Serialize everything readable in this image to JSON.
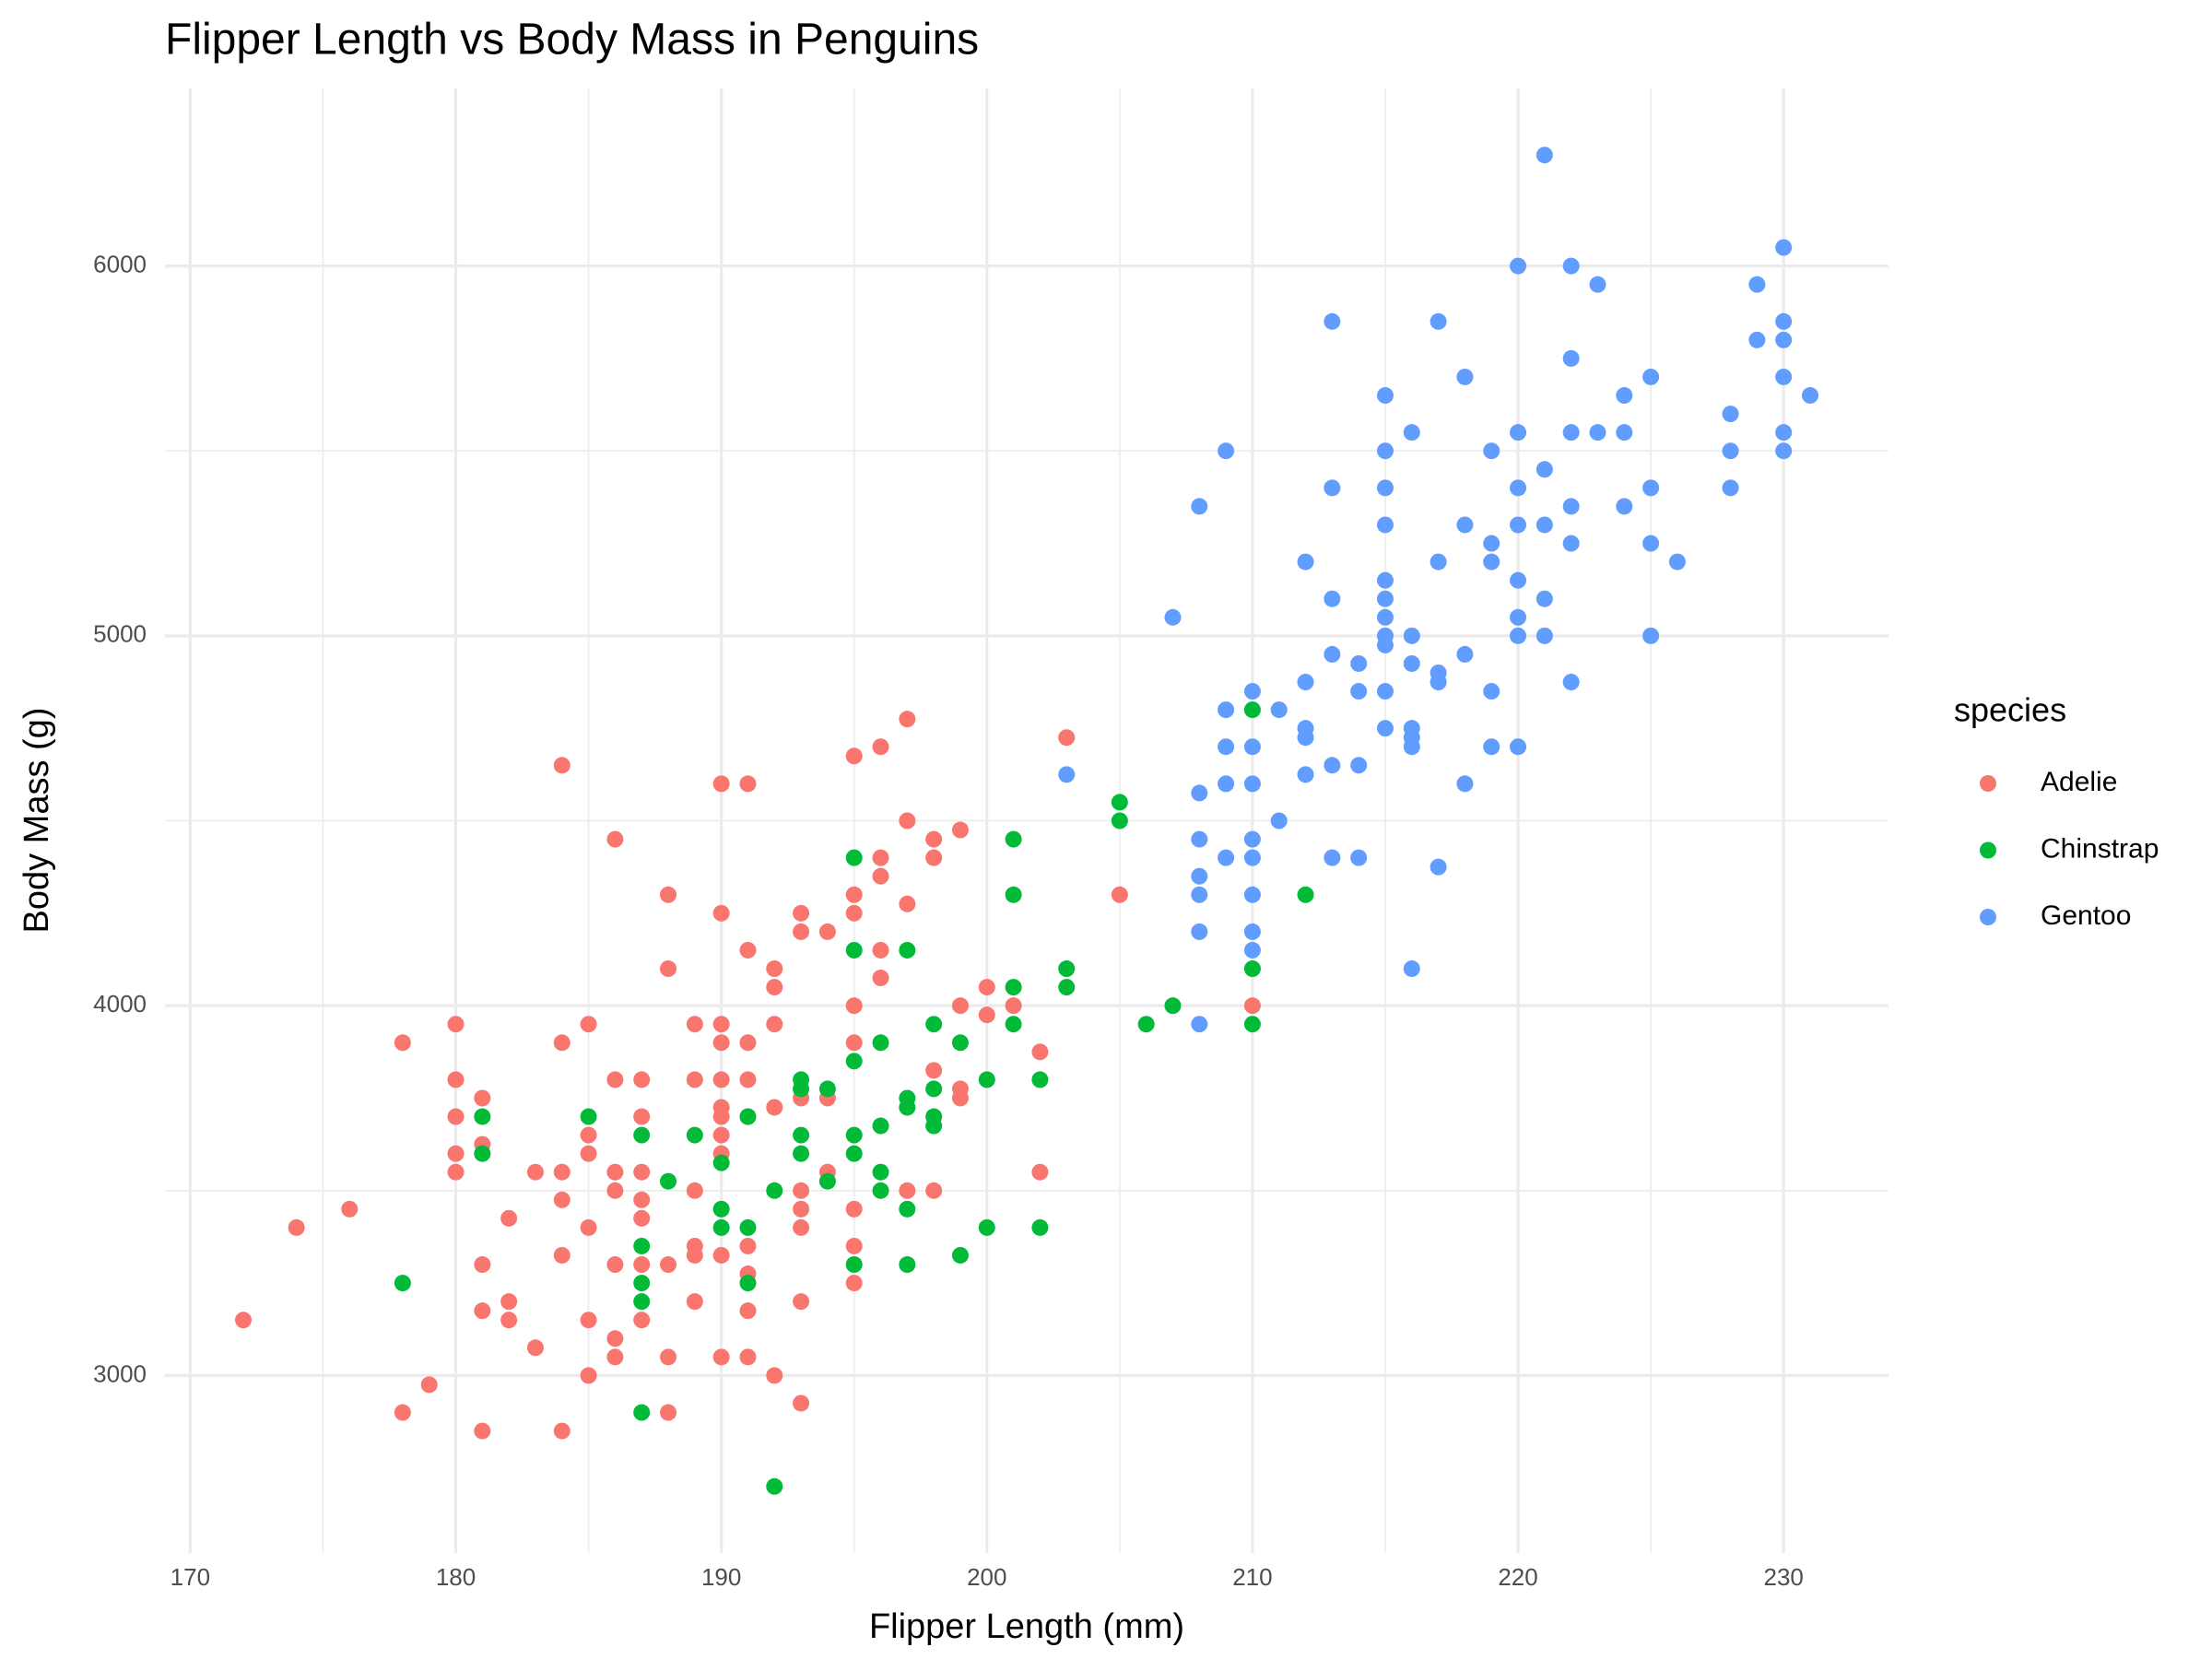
{
  "chart_data": {
    "type": "scatter",
    "title": "Flipper Length vs Body Mass in Penguins",
    "x_label": "Flipper Length (mm)",
    "y_label": "Body Mass (g)",
    "legend_title": "species",
    "legend_position": "right",
    "grid": true,
    "minor_grid": true,
    "xlim": [
      169.05,
      233.95
    ],
    "ylim": [
      2520,
      6480
    ],
    "xticks": [
      170,
      180,
      190,
      200,
      210,
      220,
      230
    ],
    "yticks": [
      3000,
      4000,
      5000,
      6000
    ],
    "series": [
      {
        "name": "Adelie",
        "color": "#F8766D",
        "x": [
          172,
          174,
          176,
          178,
          178,
          179,
          180,
          180,
          180,
          180,
          180,
          181,
          181,
          181,
          181,
          181,
          182,
          182,
          182,
          183,
          183,
          184,
          184,
          184,
          184,
          184,
          184,
          185,
          185,
          185,
          185,
          185,
          185,
          186,
          186,
          186,
          186,
          186,
          186,
          186,
          187,
          187,
          187,
          187,
          187,
          187,
          187,
          188,
          188,
          188,
          188,
          188,
          189,
          189,
          189,
          189,
          189,
          189,
          190,
          190,
          190,
          190,
          190,
          190,
          190,
          190,
          190,
          190,
          190,
          191,
          191,
          191,
          191,
          191,
          191,
          191,
          191,
          191,
          192,
          192,
          192,
          192,
          192,
          193,
          193,
          193,
          193,
          193,
          193,
          193,
          193,
          194,
          194,
          194,
          195,
          195,
          195,
          195,
          195,
          195,
          195,
          195,
          196,
          196,
          196,
          196,
          196,
          197,
          197,
          197,
          197,
          198,
          198,
          198,
          198,
          199,
          199,
          199,
          199,
          200,
          200,
          201,
          202,
          202,
          203,
          205,
          210
        ],
        "y": [
          3150,
          3400,
          3450,
          3900,
          2900,
          2975,
          3950,
          3800,
          3700,
          3600,
          3550,
          3750,
          3625,
          3300,
          3175,
          2850,
          3425,
          3200,
          3150,
          3550,
          3075,
          4650,
          3900,
          3550,
          3475,
          3325,
          2850,
          3950,
          3650,
          3600,
          3400,
          3150,
          3000,
          4450,
          3800,
          3550,
          3500,
          3300,
          3100,
          3050,
          3800,
          3700,
          3550,
          3475,
          3425,
          3300,
          3150,
          4300,
          4100,
          3300,
          3050,
          2900,
          3950,
          3800,
          3500,
          3350,
          3325,
          3200,
          4600,
          4250,
          3950,
          3900,
          3800,
          3725,
          3700,
          3650,
          3600,
          3325,
          3050,
          4600,
          4150,
          3900,
          3800,
          3700,
          3350,
          3275,
          3175,
          3050,
          4100,
          4050,
          3950,
          3725,
          3000,
          4250,
          4200,
          3750,
          3500,
          3450,
          3400,
          3200,
          2925,
          4200,
          3750,
          3550,
          4675,
          4300,
          4250,
          4000,
          3900,
          3450,
          3350,
          3250,
          4700,
          4400,
          4350,
          4150,
          4075,
          4775,
          4500,
          4275,
          3500,
          4450,
          4400,
          3825,
          3500,
          4475,
          4000,
          3775,
          3750,
          4050,
          3975,
          4000,
          3875,
          3550,
          4725,
          4300,
          4000
        ]
      },
      {
        "name": "Chinstrap",
        "color": "#00BA38",
        "x": [
          178,
          181,
          181,
          185,
          187,
          187,
          187,
          187,
          187,
          188,
          189,
          190,
          190,
          190,
          191,
          191,
          191,
          192,
          192,
          193,
          193,
          193,
          193,
          194,
          194,
          195,
          195,
          195,
          195,
          195,
          195,
          196,
          196,
          196,
          196,
          197,
          197,
          197,
          197,
          197,
          198,
          198,
          198,
          198,
          199,
          199,
          200,
          200,
          201,
          201,
          201,
          201,
          202,
          202,
          203,
          203,
          205,
          205,
          206,
          207,
          210,
          210,
          210,
          212
        ],
        "y": [
          3250,
          3700,
          3600,
          3700,
          3650,
          3350,
          3250,
          3200,
          2900,
          3525,
          3650,
          3575,
          3450,
          3400,
          3700,
          3400,
          3250,
          3500,
          2700,
          3800,
          3775,
          3650,
          3600,
          3775,
          3525,
          4400,
          4150,
          3850,
          3650,
          3600,
          3300,
          3900,
          3675,
          3550,
          3500,
          4150,
          3750,
          3725,
          3450,
          3300,
          3950,
          3775,
          3700,
          3675,
          3900,
          3325,
          3800,
          3400,
          4450,
          4300,
          4050,
          3950,
          3800,
          3400,
          4100,
          4050,
          4550,
          4500,
          3950,
          4000,
          4800,
          4100,
          3950,
          4300
        ]
      },
      {
        "name": "Gentoo",
        "color": "#619CFF",
        "x": [
          203,
          207,
          208,
          208,
          208,
          208,
          208,
          208,
          208,
          209,
          209,
          209,
          209,
          209,
          210,
          210,
          210,
          210,
          210,
          210,
          210,
          210,
          211,
          211,
          212,
          212,
          212,
          212,
          212,
          213,
          213,
          213,
          213,
          213,
          213,
          214,
          214,
          214,
          214,
          215,
          215,
          215,
          215,
          215,
          215,
          215,
          215,
          215,
          215,
          215,
          216,
          216,
          216,
          216,
          216,
          216,
          216,
          217,
          217,
          217,
          217,
          217,
          218,
          218,
          218,
          218,
          219,
          219,
          219,
          219,
          219,
          220,
          220,
          220,
          220,
          220,
          220,
          220,
          220,
          221,
          221,
          221,
          221,
          221,
          222,
          222,
          222,
          222,
          222,
          222,
          223,
          223,
          224,
          224,
          224,
          225,
          225,
          225,
          225,
          226,
          228,
          228,
          228,
          229,
          229,
          230,
          230,
          230,
          230,
          230,
          230,
          231
        ],
        "y": [
          4625,
          5050,
          5350,
          4575,
          4450,
          4350,
          4300,
          4200,
          3950,
          5500,
          4800,
          4700,
          4600,
          4400,
          4850,
          4700,
          4600,
          4450,
          4400,
          4300,
          4200,
          4150,
          4800,
          4500,
          5200,
          4875,
          4750,
          4725,
          4625,
          5850,
          5400,
          5100,
          4950,
          4650,
          4400,
          4925,
          4850,
          4650,
          4400,
          5650,
          5500,
          5400,
          5300,
          5150,
          5100,
          5050,
          5000,
          4975,
          4850,
          4750,
          5550,
          5000,
          4925,
          4750,
          4725,
          4700,
          4100,
          5850,
          5200,
          4900,
          4875,
          4375,
          5700,
          5300,
          4950,
          4600,
          5500,
          5250,
          5200,
          4850,
          4700,
          6000,
          5550,
          5400,
          5300,
          5150,
          5050,
          5000,
          4700,
          6300,
          5450,
          5300,
          5100,
          5000,
          6000,
          5750,
          5550,
          5350,
          5250,
          4875,
          5950,
          5550,
          5650,
          5550,
          5350,
          5700,
          5400,
          5250,
          5000,
          5200,
          5600,
          5500,
          5400,
          5950,
          5800,
          6050,
          5850,
          5800,
          5700,
          5550,
          5500,
          5650
        ]
      }
    ]
  }
}
